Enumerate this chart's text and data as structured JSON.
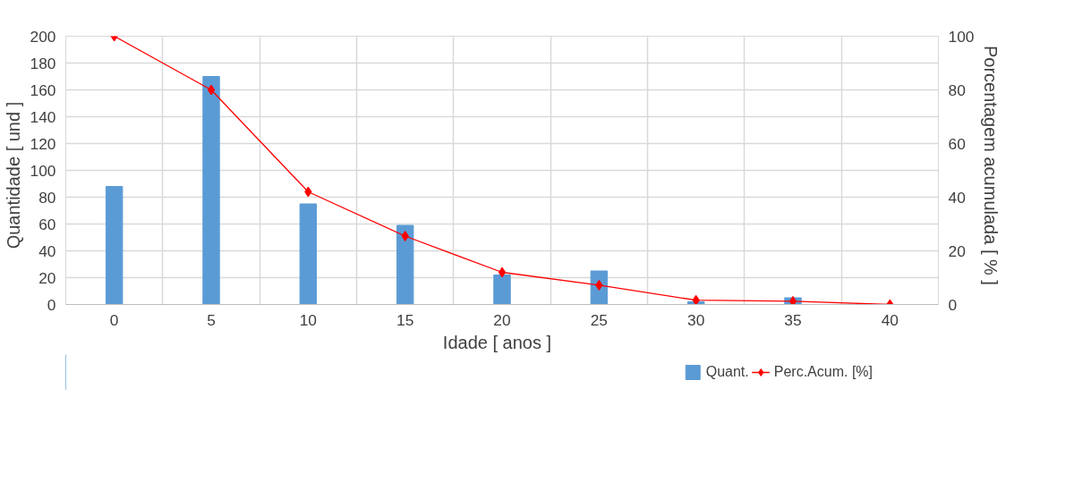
{
  "chart_data": {
    "type": "bar",
    "categories": [
      "0",
      "5",
      "10",
      "15",
      "20",
      "25",
      "30",
      "35",
      "40"
    ],
    "xlabel": "Idade   [ anos ]",
    "ylabel": "Quantidade   [ und ]",
    "y2label": "Porcentagem acumulada   [ % ]",
    "series": [
      {
        "name": "Quant.",
        "color": "#5b9bd5",
        "values": [
          88,
          170,
          75,
          59,
          22,
          25,
          2,
          5,
          0
        ]
      },
      {
        "name": "Perc.Acum. [%]",
        "type": "line",
        "axis": "y2",
        "color": "#ff0000",
        "marker": "diamond",
        "values": [
          100,
          80,
          42,
          25.5,
          12,
          7.2,
          1.6,
          1.2,
          0
        ]
      }
    ],
    "ylim": [
      0,
      200
    ],
    "yticks": [
      0,
      20,
      40,
      60,
      80,
      100,
      120,
      140,
      160,
      180,
      200
    ],
    "y2lim": [
      0,
      100
    ],
    "y2ticks": [
      0,
      20,
      40,
      60,
      80,
      100
    ],
    "grid": true,
    "legend": "bottom right"
  }
}
